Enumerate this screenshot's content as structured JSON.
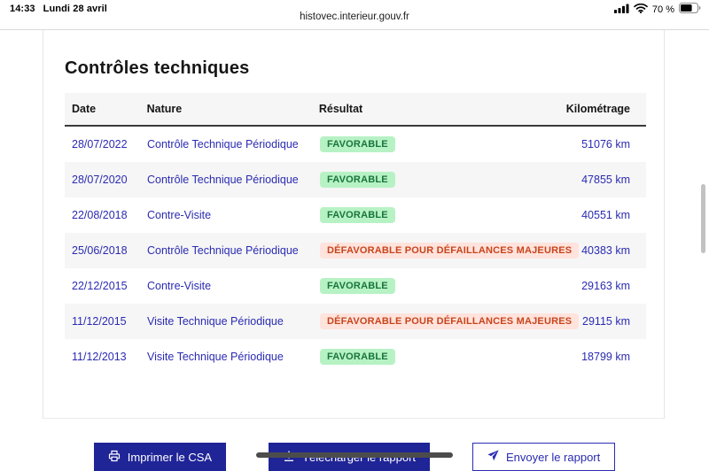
{
  "status_bar": {
    "time": "14:33",
    "date": "Lundi 28 avril",
    "battery_percent": "70 %",
    "icons": [
      "cellular-signal-icon",
      "wifi-icon",
      "battery-icon"
    ]
  },
  "browser": {
    "url": "histovec.interieur.gouv.fr"
  },
  "page": {
    "title": "Contrôles techniques",
    "table": {
      "headers": [
        "Date",
        "Nature",
        "Résultat",
        "Kilométrage"
      ],
      "rows": [
        {
          "date": "28/07/2022",
          "nature": "Contrôle Technique Périodique",
          "result": "FAVORABLE",
          "result_type": "favorable",
          "km": "51076 km"
        },
        {
          "date": "28/07/2020",
          "nature": "Contrôle Technique Périodique",
          "result": "FAVORABLE",
          "result_type": "favorable",
          "km": "47855 km"
        },
        {
          "date": "22/08/2018",
          "nature": "Contre-Visite",
          "result": "FAVORABLE",
          "result_type": "favorable",
          "km": "40551 km"
        },
        {
          "date": "25/06/2018",
          "nature": "Contrôle Technique Périodique",
          "result": "DÉFAVORABLE POUR DÉFAILLANCES MAJEURES",
          "result_type": "defavorable",
          "km": "40383 km"
        },
        {
          "date": "22/12/2015",
          "nature": "Contre-Visite",
          "result": "FAVORABLE",
          "result_type": "favorable",
          "km": "29163 km"
        },
        {
          "date": "11/12/2015",
          "nature": "Visite Technique Périodique",
          "result": "DÉFAVORABLE POUR DÉFAILLANCES MAJEURES",
          "result_type": "defavorable",
          "km": "29115 km"
        },
        {
          "date": "11/12/2013",
          "nature": "Visite Technique Périodique",
          "result": "FAVORABLE",
          "result_type": "favorable",
          "km": "18799 km"
        }
      ]
    },
    "buttons": [
      {
        "label": "Imprimer le CSA",
        "icon": "printer-icon",
        "style": "filled"
      },
      {
        "label": "Télécharger le rapport",
        "icon": "download-icon",
        "style": "filled"
      },
      {
        "label": "Envoyer le rapport",
        "icon": "send-icon",
        "style": "outline"
      }
    ]
  },
  "colors": {
    "link_blue": "#2b2bb3",
    "button_blue": "#1f2497",
    "favorable_bg": "#b7f2c4",
    "favorable_text": "#18753c",
    "defavorable_bg": "#ffe3dc",
    "defavorable_text": "#c8441c",
    "stripe_gray": "#f6f6f6"
  }
}
